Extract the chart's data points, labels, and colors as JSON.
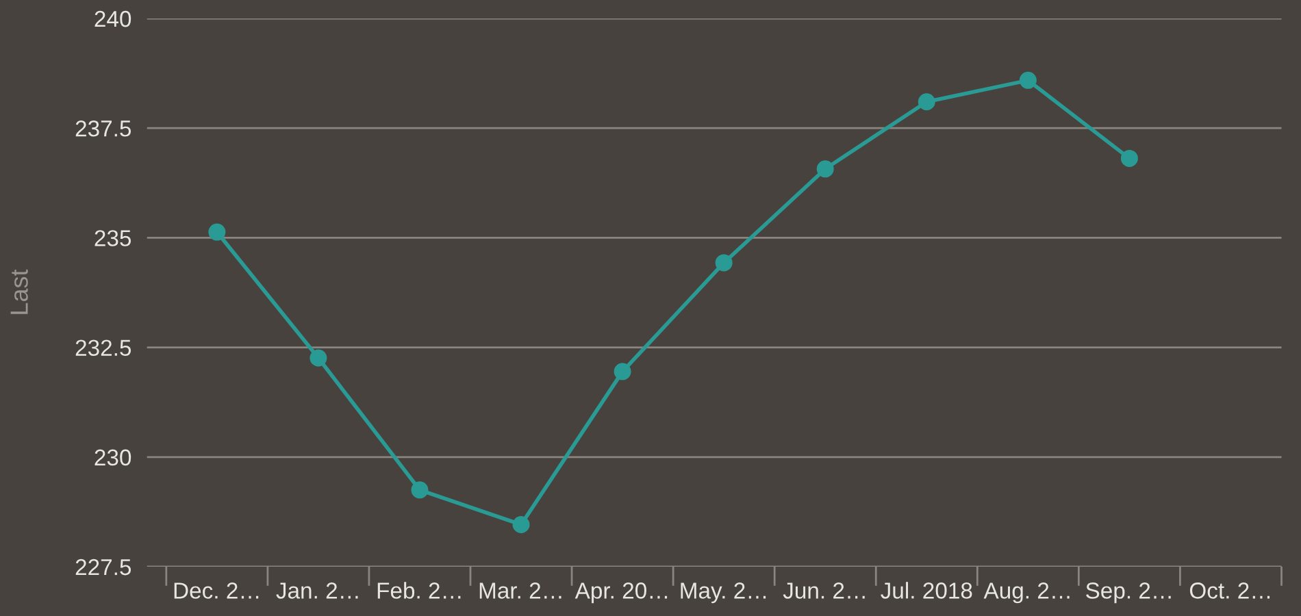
{
  "chart_data": {
    "type": "line",
    "ylabel": "Last",
    "categories": [
      "Dec. 2…",
      "Jan. 2…",
      "Feb. 2…",
      "Mar. 2…",
      "Apr. 20…",
      "May. 2…",
      "Jun. 2…",
      "Jul. 2018",
      "Aug. 2…",
      "Sep. 2…",
      "Oct. 2…"
    ],
    "series": [
      {
        "color": "#2a9a94",
        "values": [
          235.13,
          232.26,
          229.25,
          228.46,
          231.95,
          234.43,
          236.57,
          238.1,
          238.59,
          236.81,
          null
        ]
      }
    ],
    "ylim": [
      227.5,
      240
    ],
    "yticks": [
      227.5,
      230,
      232.5,
      235,
      237.5,
      240
    ],
    "grid": "y",
    "marker": "circle",
    "line_style": "solid"
  }
}
